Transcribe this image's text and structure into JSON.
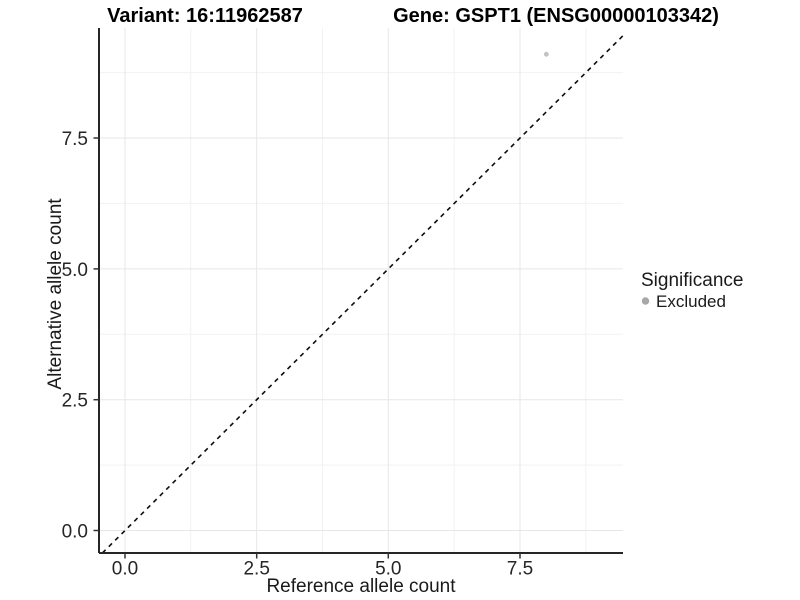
{
  "chart_data": {
    "type": "scatter",
    "title_left": "Variant: 16:11962587",
    "title_right": "Gene: GSPT1 (ENSG00000103342)",
    "xlabel": "Reference allele count",
    "ylabel": "Alternative allele count",
    "x_ticks": [
      "0.0",
      "2.5",
      "5.0",
      "7.5"
    ],
    "y_ticks": [
      "0.0",
      "2.5",
      "5.0",
      "7.5"
    ],
    "xlim": [
      -0.49,
      9.46
    ],
    "ylim": [
      -0.43,
      9.6
    ],
    "grid": "major and minor gridlines, white panel background",
    "reference_line": {
      "description": "identity line y = x",
      "slope": 1,
      "intercept": 0,
      "style": "dashed",
      "color": "#0d0d0d"
    },
    "series": [
      {
        "name": "Excluded",
        "color": "#c2c2c2",
        "points": [
          {
            "x": 8,
            "y": 9.1
          }
        ]
      }
    ],
    "legend": {
      "title": "Significance",
      "position": "right",
      "items": [
        {
          "label": "Excluded",
          "color": "#a8a8a8"
        }
      ]
    }
  }
}
